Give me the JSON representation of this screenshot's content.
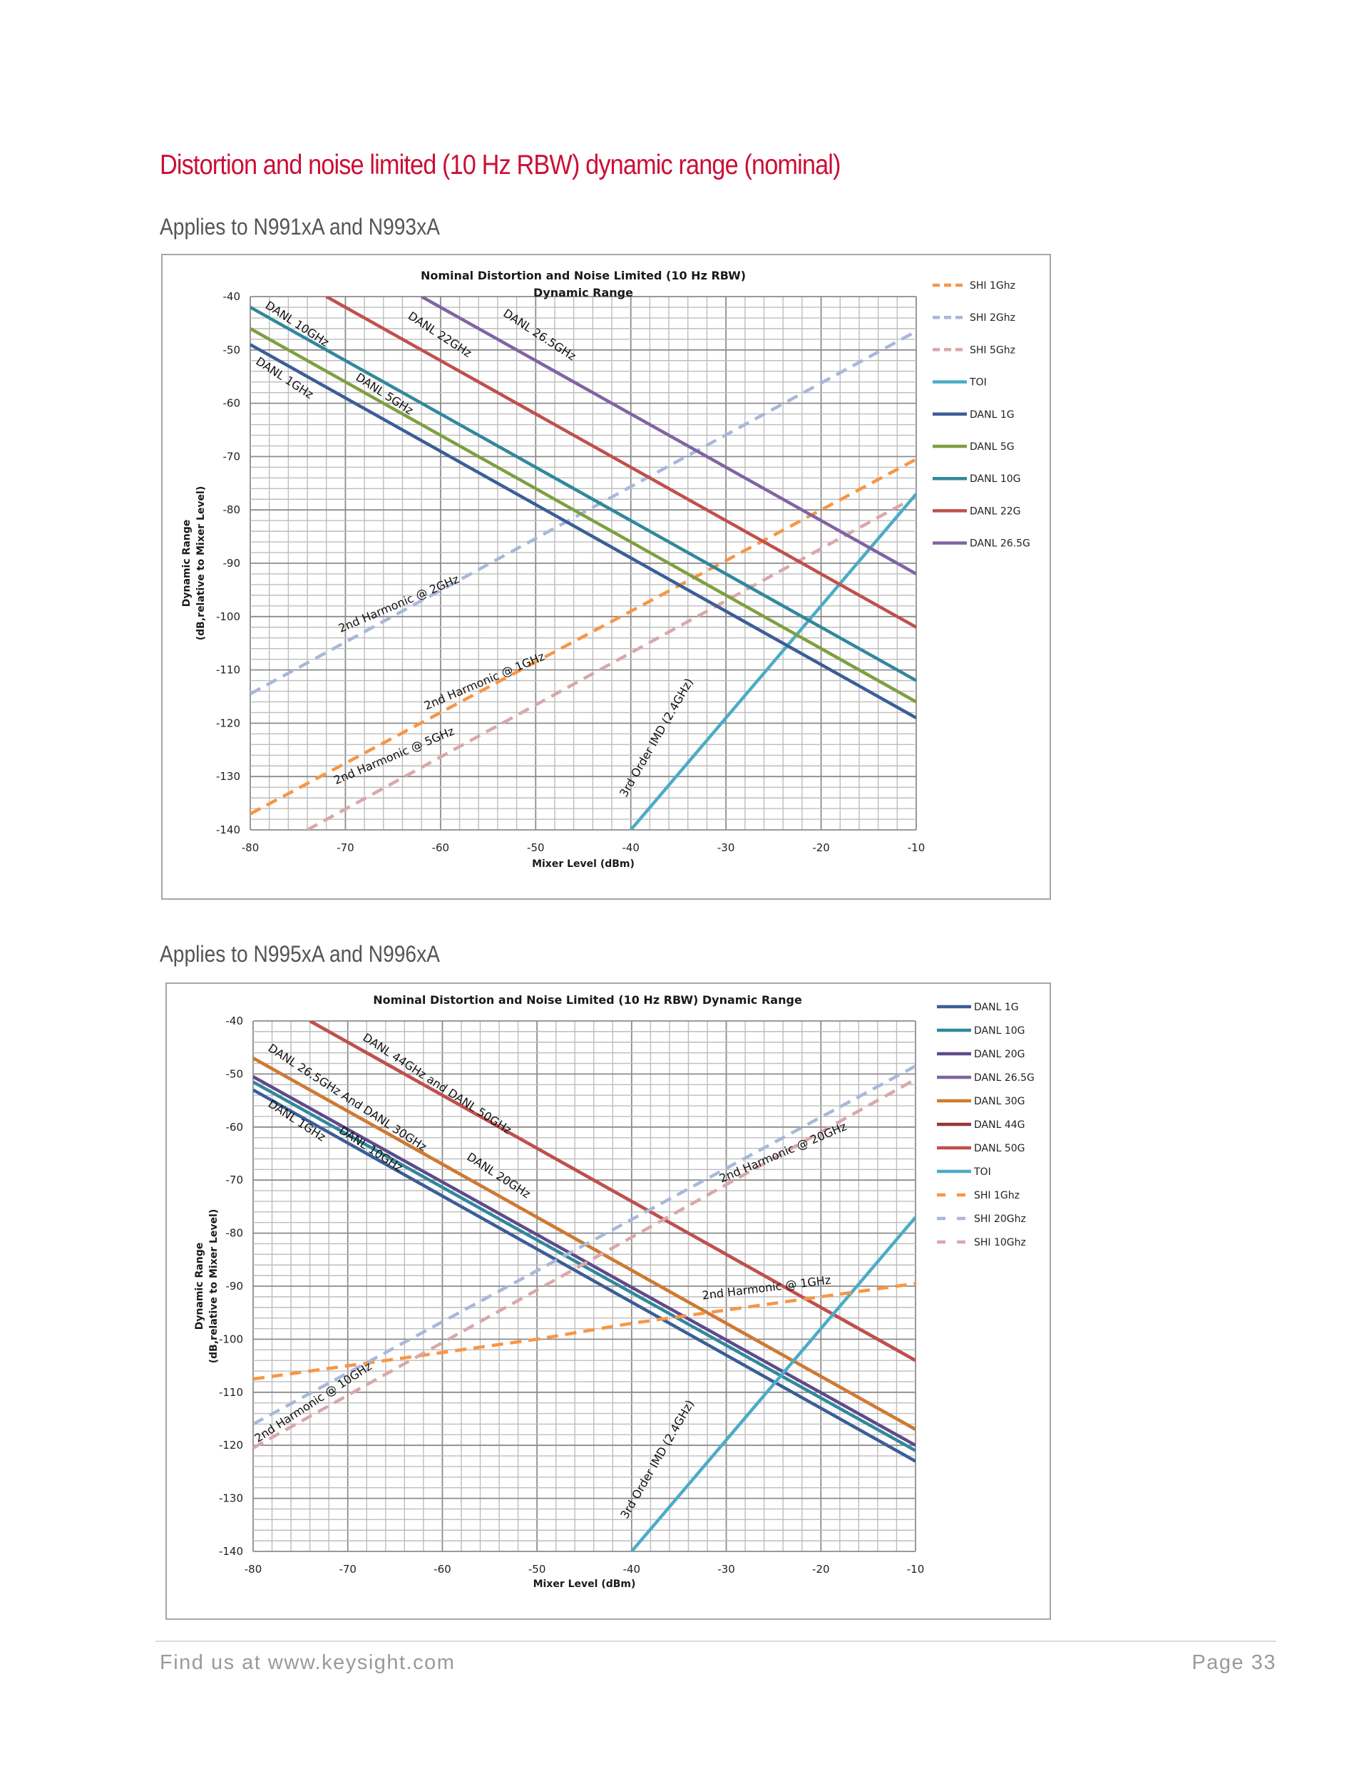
{
  "page": {
    "title": "Distortion and noise limited (10 Hz RBW) dynamic range (nominal)",
    "subtitle_1": "Applies to N991xA and N993xA",
    "subtitle_2": "Applies to N995xA and N996xA",
    "footer_left": "Find us at www.keysight.com",
    "footer_right": "Page 33"
  },
  "chart_data": [
    {
      "type": "line",
      "title": [
        "Nominal Distortion and Noise Limited (10 Hz RBW)",
        "Dynamic Range"
      ],
      "xlabel": "Mixer Level (dBm)",
      "ylabel": [
        "Dynamic Range",
        "(dB,relative to Mixer Level)"
      ],
      "xlim": [
        -80,
        -10
      ],
      "ylim": [
        -140,
        -40
      ],
      "xticks": [
        -80,
        -70,
        -60,
        -50,
        -40,
        -30,
        -20,
        -10
      ],
      "yticks": [
        -40,
        -50,
        -60,
        -70,
        -80,
        -90,
        -100,
        -110,
        -120,
        -130,
        -140
      ],
      "x_minor_step": 2,
      "y_minor_step": 2,
      "grid": true,
      "legend_position": "right",
      "series": [
        {
          "name": "SHI 1Ghz",
          "color": "#f79646",
          "dash": true,
          "x": [
            -80,
            -10
          ],
          "y": [
            -137,
            -70.5
          ]
        },
        {
          "name": "SHI 2Ghz",
          "color": "#a9b8d8",
          "dash": true,
          "x": [
            -80,
            -10
          ],
          "y": [
            -114.5,
            -46.5
          ]
        },
        {
          "name": "SHI 5Ghz",
          "color": "#d9a8aa",
          "dash": true,
          "x": [
            -74,
            -10
          ],
          "y": [
            -140,
            -77.5
          ]
        },
        {
          "name": "TOI",
          "color": "#4bacc6",
          "dash": false,
          "x": [
            -40,
            -10
          ],
          "y": [
            -140,
            -77
          ]
        },
        {
          "name": "DANL 1G",
          "color": "#3b5e96",
          "dash": false,
          "x": [
            -80,
            -10
          ],
          "y": [
            -49,
            -119
          ]
        },
        {
          "name": "DANL 5G",
          "color": "#7f9f42",
          "dash": false,
          "x": [
            -80,
            -10
          ],
          "y": [
            -46,
            -116
          ]
        },
        {
          "name": "DANL 10G",
          "color": "#31889c",
          "dash": false,
          "x": [
            -80,
            -10
          ],
          "y": [
            -42,
            -112
          ]
        },
        {
          "name": "DANL 22G",
          "color": "#c0504d",
          "dash": false,
          "x": [
            -72,
            -10
          ],
          "y": [
            -40,
            -102
          ]
        },
        {
          "name": "DANL 26.5G",
          "color": "#8064a2",
          "dash": false,
          "x": [
            -62,
            -10
          ],
          "y": [
            -40,
            -92
          ]
        }
      ],
      "annotations": [
        {
          "text": "DANL 10GHz",
          "x": -78.5,
          "y": -42,
          "angle": 33
        },
        {
          "text": "DANL 22GHz",
          "x": -63.5,
          "y": -44,
          "angle": 33
        },
        {
          "text": "DANL 26.5GHz",
          "x": -53.5,
          "y": -43.5,
          "angle": 33
        },
        {
          "text": "DANL 1GHz",
          "x": -79.5,
          "y": -52.5,
          "angle": 33
        },
        {
          "text": "DANL 5GHz",
          "x": -69,
          "y": -55.5,
          "angle": 33
        },
        {
          "text": "2nd Harmonic @ 2GHz",
          "x": -70.5,
          "y": -103,
          "angle": -23
        },
        {
          "text": "2nd Harmonic @ 1GHz",
          "x": -61.5,
          "y": -117.5,
          "angle": -23
        },
        {
          "text": "2nd Harmonic @ 5GHz",
          "x": -71,
          "y": -131.5,
          "angle": -23
        },
        {
          "text": "3rd Order IMD (2.4GHz)",
          "x": -40.5,
          "y": -134,
          "angle": -60
        }
      ]
    },
    {
      "type": "line",
      "title": [
        "Nominal Distortion and Noise Limited (10 Hz RBW) Dynamic Range"
      ],
      "xlabel": "Mixer Level (dBm)",
      "ylabel": [
        "Dynamic Range",
        "(dB,relative to Mixer Level)"
      ],
      "xlim": [
        -80,
        -10
      ],
      "ylim": [
        -140,
        -40
      ],
      "xticks": [
        -80,
        -70,
        -60,
        -50,
        -40,
        -30,
        -20,
        -10
      ],
      "yticks": [
        -40,
        -50,
        -60,
        -70,
        -80,
        -90,
        -100,
        -110,
        -120,
        -130,
        -140
      ],
      "x_minor_step": 2,
      "y_minor_step": 2,
      "grid": true,
      "legend_position": "right",
      "series": [
        {
          "name": "DANL 1G",
          "color": "#3b5e96",
          "dash": false,
          "x": [
            -80,
            -10
          ],
          "y": [
            -53,
            -123
          ]
        },
        {
          "name": "DANL 10G",
          "color": "#31889c",
          "dash": false,
          "x": [
            -80,
            -10
          ],
          "y": [
            -51.5,
            -121
          ]
        },
        {
          "name": "DANL 20G",
          "color": "#5f4a8b",
          "dash": false,
          "x": [
            -80,
            -10
          ],
          "y": [
            -50.5,
            -120
          ]
        },
        {
          "name": "DANL 26.5G",
          "color": "#8064a2",
          "dash": false,
          "x": [
            -80,
            -10
          ],
          "y": [
            -47,
            -117
          ]
        },
        {
          "name": "DANL 30G",
          "color": "#d07a2e",
          "dash": false,
          "x": [
            -80,
            -10
          ],
          "y": [
            -47,
            -117
          ]
        },
        {
          "name": "DANL 44G",
          "color": "#953735",
          "dash": false,
          "x": [
            -74,
            -10
          ],
          "y": [
            -40,
            -104
          ]
        },
        {
          "name": "DANL 50G",
          "color": "#c0504d",
          "dash": false,
          "x": [
            -74,
            -10
          ],
          "y": [
            -40,
            -104
          ]
        },
        {
          "name": "TOI",
          "color": "#4bacc6",
          "dash": false,
          "x": [
            -40,
            -10
          ],
          "y": [
            -140,
            -77
          ]
        },
        {
          "name": "SHI 1Ghz",
          "color": "#f79646",
          "dash": true,
          "x": [
            -80,
            -70,
            -60,
            -50,
            -40,
            -30,
            -20,
            -10
          ],
          "y": [
            -107.5,
            -105,
            -102.5,
            -100,
            -97,
            -94.5,
            -92,
            -89.5
          ]
        },
        {
          "name": "SHI 20Ghz",
          "color": "#a9b8d8",
          "dash": true,
          "x": [
            -80,
            -10
          ],
          "y": [
            -116,
            -48.5
          ]
        },
        {
          "name": "SHI 10Ghz",
          "color": "#d9a8aa",
          "dash": true,
          "x": [
            -80,
            -10
          ],
          "y": [
            -120.5,
            -51
          ]
        }
      ],
      "annotations": [
        {
          "text": "DANL 44GHz and DANL 50GHz",
          "x": -68.5,
          "y": -43.5,
          "angle": 33
        },
        {
          "text": "DANL 26.5GHz And DANL 30GHz",
          "x": -78.5,
          "y": -45.5,
          "angle": 33
        },
        {
          "text": "DANL 1GHz",
          "x": -78.5,
          "y": -56,
          "angle": 33
        },
        {
          "text": "DANL 10GHz",
          "x": -71,
          "y": -61,
          "angle": 33
        },
        {
          "text": "DANL 20GHz",
          "x": -57.5,
          "y": -66,
          "angle": 33
        },
        {
          "text": "2nd Harmonic @ 20GHz",
          "x": -30.5,
          "y": -70.5,
          "angle": -23
        },
        {
          "text": "2nd Harmonic @ 1GHz",
          "x": -32.5,
          "y": -92.5,
          "angle": -7
        },
        {
          "text": "2nd Harmonic @ 10GHz",
          "x": -79.5,
          "y": -119.5,
          "angle": -33
        },
        {
          "text": "3rd Order IMD (2.4GHz)",
          "x": -40.5,
          "y": -134,
          "angle": -60
        }
      ]
    }
  ]
}
